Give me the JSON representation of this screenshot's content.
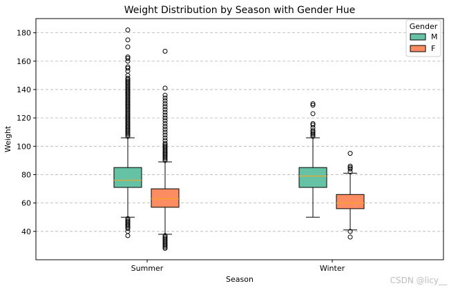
{
  "chart_data": {
    "type": "box",
    "title": "Weight Distribution by Season with Gender Hue",
    "xlabel": "Season",
    "ylabel": "Weight",
    "categories": [
      "Summer",
      "Winter"
    ],
    "ylim": [
      20,
      190
    ],
    "yticks": [
      40,
      60,
      80,
      100,
      120,
      140,
      160,
      180
    ],
    "grid": {
      "y": true,
      "style": "dashed"
    },
    "legend": {
      "title": "Gender",
      "placement": "top-right"
    },
    "series": [
      {
        "name": "M",
        "color": "#66c2a5",
        "boxes": [
          {
            "category": "Summer",
            "whisker_low": 50,
            "q1": 71,
            "median": 76,
            "q3": 85,
            "whisker_high": 106,
            "outliers": [
              49,
              48,
              47,
              46,
              45,
              44,
              43,
              42,
              40,
              37,
              107,
              108,
              109,
              110,
              111,
              112,
              113,
              114,
              115,
              116,
              117,
              118,
              119,
              120,
              121,
              122,
              123,
              124,
              125,
              126,
              127,
              128,
              129,
              130,
              131,
              132,
              133,
              134,
              135,
              136,
              137,
              138,
              139,
              140,
              141,
              142,
              143,
              144,
              145,
              146,
              147,
              148,
              150,
              153,
              155,
              156,
              160,
              162,
              163,
              170,
              175,
              182
            ]
          },
          {
            "category": "Winter",
            "whisker_low": 50,
            "q1": 71,
            "median": 79,
            "q3": 85,
            "whisker_high": 106,
            "outliers": [
              107,
              108,
              109,
              110,
              111,
              113,
              115,
              116,
              123,
              129,
              130
            ]
          }
        ]
      },
      {
        "name": "F",
        "color": "#fc8d62",
        "boxes": [
          {
            "category": "Summer",
            "whisker_low": 38,
            "q1": 57,
            "median": 63,
            "q3": 70,
            "whisker_high": 89,
            "outliers": [
              37,
              36,
              35,
              34,
              33,
              32,
              31,
              30,
              29,
              28,
              90,
              91,
              92,
              93,
              94,
              95,
              96,
              97,
              98,
              99,
              100,
              101,
              102,
              104,
              106,
              108,
              110,
              112,
              114,
              116,
              118,
              120,
              122,
              124,
              126,
              128,
              130,
              132,
              134,
              136,
              141,
              167
            ]
          },
          {
            "category": "Winter",
            "whisker_low": 41,
            "q1": 56,
            "median": 60,
            "q3": 66,
            "whisker_high": 81,
            "outliers": [
              40,
              36,
              82,
              84,
              85,
              86,
              95
            ]
          }
        ]
      }
    ]
  },
  "watermark": "CSDN @licy__"
}
